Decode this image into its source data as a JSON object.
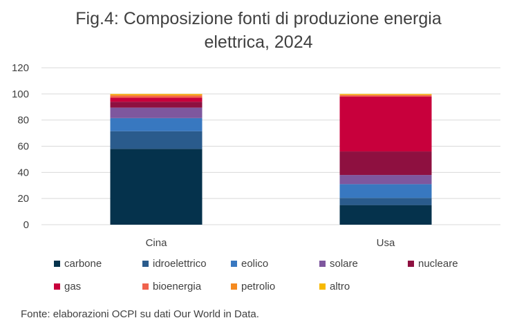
{
  "title_line1": "Fig.4: Composizione fonti di produzione energia",
  "title_line2": "elettrica, 2024",
  "source": "Fonte: elaborazioni OCPI su dati Our World in Data.",
  "chart_data": {
    "type": "bar",
    "stacked": true,
    "title": "Fig.4: Composizione fonti di produzione energia elettrica, 2024",
    "categories": [
      "Cina",
      "Usa"
    ],
    "ylim": [
      0,
      120
    ],
    "yticks": [
      0,
      20,
      40,
      60,
      80,
      100,
      120
    ],
    "grid": true,
    "legend_position": "bottom",
    "series": [
      {
        "name": "carbone",
        "color": "#05324C",
        "values": [
          58,
          15
        ]
      },
      {
        "name": "idroelettrico",
        "color": "#2A5B8C",
        "values": [
          13.5,
          5.5
        ]
      },
      {
        "name": "eolico",
        "color": "#3878C0",
        "values": [
          10,
          10.5
        ]
      },
      {
        "name": "solare",
        "color": "#7E579E",
        "values": [
          8,
          7
        ]
      },
      {
        "name": "nucleare",
        "color": "#8E1040",
        "values": [
          4.5,
          18
        ]
      },
      {
        "name": "gas",
        "color": "#C8003C",
        "values": [
          3,
          42
        ]
      },
      {
        "name": "bioenergia",
        "color": "#F0624D",
        "values": [
          1.5,
          1
        ]
      },
      {
        "name": "petrolio",
        "color": "#F58A1F",
        "values": [
          1,
          0.5
        ]
      },
      {
        "name": "altro",
        "color": "#F7B900",
        "values": [
          0.5,
          0.5
        ]
      }
    ]
  }
}
